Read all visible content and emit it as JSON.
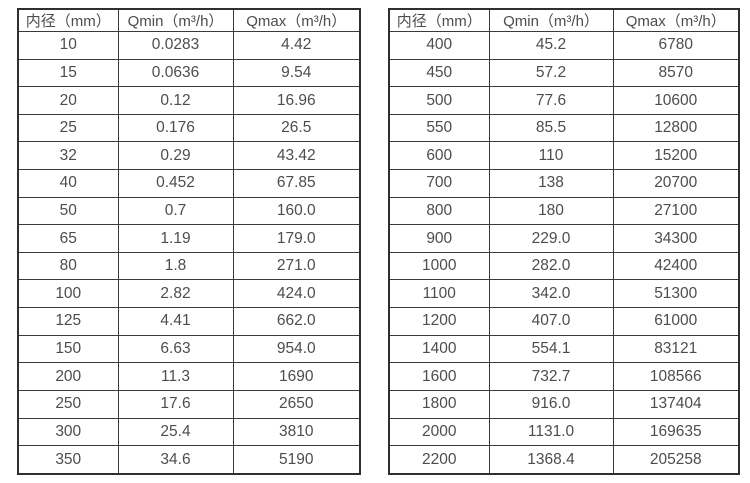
{
  "tables": [
    {
      "name": "flow-spec-table-dn10-350",
      "headers": [
        "内径（mm）",
        "Qmin（m³/h）",
        "Qmax（m³/h）"
      ],
      "rows": [
        [
          "10",
          "0.0283",
          "4.42"
        ],
        [
          "15",
          "0.0636",
          "9.54"
        ],
        [
          "20",
          "0.12",
          "16.96"
        ],
        [
          "25",
          "0.176",
          "26.5"
        ],
        [
          "32",
          "0.29",
          "43.42"
        ],
        [
          "40",
          "0.452",
          "67.85"
        ],
        [
          "50",
          "0.7",
          "160.0"
        ],
        [
          "65",
          "1.19",
          "179.0"
        ],
        [
          "80",
          "1.8",
          "271.0"
        ],
        [
          "100",
          "2.82",
          "424.0"
        ],
        [
          "125",
          "4.41",
          "662.0"
        ],
        [
          "150",
          "6.63",
          "954.0"
        ],
        [
          "200",
          "11.3",
          "1690"
        ],
        [
          "250",
          "17.6",
          "2650"
        ],
        [
          "300",
          "25.4",
          "3810"
        ],
        [
          "350",
          "34.6",
          "5190"
        ]
      ]
    },
    {
      "name": "flow-spec-table-dn400-2200",
      "headers": [
        "内径（mm）",
        "Qmin（m³/h）",
        "Qmax（m³/h）"
      ],
      "rows": [
        [
          "400",
          "45.2",
          "6780"
        ],
        [
          "450",
          "57.2",
          "8570"
        ],
        [
          "500",
          "77.6",
          "10600"
        ],
        [
          "550",
          "85.5",
          "12800"
        ],
        [
          "600",
          "110",
          "15200"
        ],
        [
          "700",
          "138",
          "20700"
        ],
        [
          "800",
          "180",
          "27100"
        ],
        [
          "900",
          "229.0",
          "34300"
        ],
        [
          "1000",
          "282.0",
          "42400"
        ],
        [
          "1100",
          "342.0",
          "51300"
        ],
        [
          "1200",
          "407.0",
          "61000"
        ],
        [
          "1400",
          "554.1",
          "83121"
        ],
        [
          "1600",
          "732.7",
          "108566"
        ],
        [
          "1800",
          "916.0",
          "137404"
        ],
        [
          "2000",
          "1131.0",
          "169635"
        ],
        [
          "2200",
          "1368.4",
          "205258"
        ]
      ]
    }
  ],
  "colors": {
    "text": "#4d4d4d",
    "border": "#3a3a3a",
    "background": "#ffffff"
  }
}
